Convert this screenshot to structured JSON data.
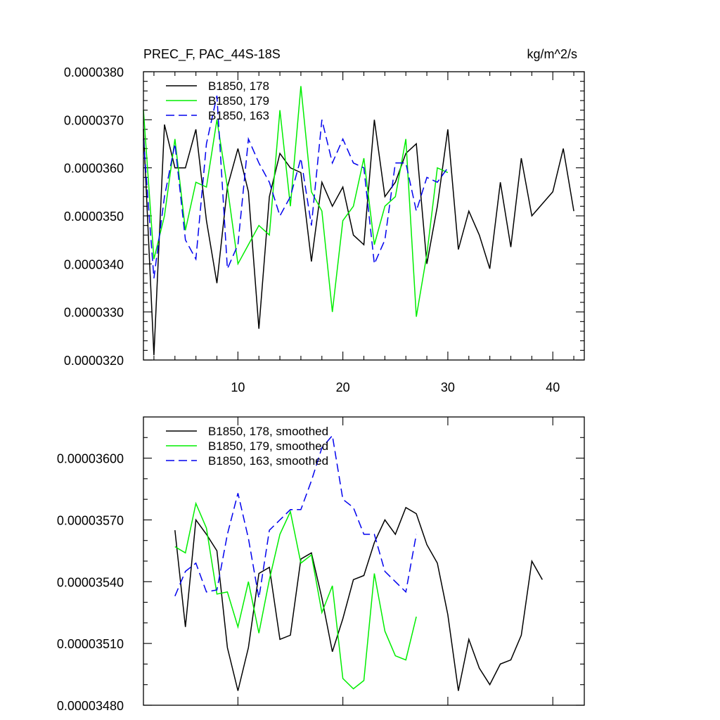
{
  "chart_data": [
    {
      "type": "line",
      "title": "PREC_F, PAC_44S-18S",
      "units_label": "kg/m^2/s",
      "xlim": [
        1,
        43
      ],
      "ylim": [
        3.2e-05,
        3.8e-05
      ],
      "x_ticks": [
        10,
        20,
        30,
        40
      ],
      "x_tick_labels": [
        "10",
        "20",
        "30",
        "40"
      ],
      "x_minor_ticks": [
        2,
        4,
        6,
        8,
        12,
        14,
        16,
        18,
        22,
        24,
        26,
        28,
        32,
        34,
        36,
        38,
        42
      ],
      "y_ticks": [
        3.2e-05,
        3.3e-05,
        3.4e-05,
        3.5e-05,
        3.6e-05,
        3.7e-05,
        3.8e-05
      ],
      "y_tick_labels": [
        "0.0000320",
        "0.0000330",
        "0.0000340",
        "0.0000350",
        "0.0000360",
        "0.0000370",
        "0.0000380"
      ],
      "y_minor_ticks": [
        3.22e-05,
        3.24e-05,
        3.26e-05,
        3.28e-05,
        3.32e-05,
        3.34e-05,
        3.36e-05,
        3.38e-05,
        3.42e-05,
        3.44e-05,
        3.46e-05,
        3.48e-05,
        3.52e-05,
        3.54e-05,
        3.56e-05,
        3.58e-05,
        3.62e-05,
        3.64e-05,
        3.66e-05,
        3.68e-05,
        3.72e-05,
        3.74e-05,
        3.76e-05,
        3.78e-05
      ],
      "legend_position": "top-left",
      "grid": false,
      "series": [
        {
          "name": "B1850, 178",
          "color": "#000000",
          "dash": "solid",
          "x": [
            1,
            2,
            3,
            4,
            5,
            6,
            7,
            8,
            9,
            10,
            11,
            12,
            13,
            14,
            15,
            16,
            17,
            18,
            19,
            20,
            21,
            22,
            23,
            24,
            25,
            26,
            27,
            28,
            29,
            30,
            31,
            32,
            33,
            34,
            35,
            36,
            37,
            38,
            39,
            40,
            41,
            42
          ],
          "y": [
            3.68e-05,
            3.21e-05,
            3.69e-05,
            3.6e-05,
            3.6e-05,
            3.68e-05,
            3.49e-05,
            3.36e-05,
            3.56e-05,
            3.64e-05,
            3.55e-05,
            3.265e-05,
            3.54e-05,
            3.63e-05,
            3.6e-05,
            3.59e-05,
            3.405e-05,
            3.57e-05,
            3.52e-05,
            3.56e-05,
            3.46e-05,
            3.44e-05,
            3.7e-05,
            3.54e-05,
            3.57e-05,
            3.63e-05,
            3.65e-05,
            3.4e-05,
            3.52e-05,
            3.68e-05,
            3.43e-05,
            3.51e-05,
            3.46e-05,
            3.39e-05,
            3.57e-05,
            3.435e-05,
            3.62e-05,
            3.5e-05,
            3.525e-05,
            3.55e-05,
            3.64e-05,
            3.51e-05
          ]
        },
        {
          "name": "B1850, 179",
          "color": "#00ee00",
          "dash": "solid",
          "x": [
            1,
            2,
            3,
            4,
            5,
            6,
            7,
            8,
            9,
            10,
            11,
            12,
            13,
            14,
            15,
            16,
            17,
            18,
            19,
            20,
            21,
            22,
            23,
            24,
            25,
            26,
            27,
            28,
            29,
            30
          ],
          "y": [
            3.72e-05,
            3.41e-05,
            3.5e-05,
            3.66e-05,
            3.47e-05,
            3.57e-05,
            3.56e-05,
            3.7e-05,
            3.56e-05,
            3.4e-05,
            3.44e-05,
            3.48e-05,
            3.46e-05,
            3.72e-05,
            3.52e-05,
            3.77e-05,
            3.55e-05,
            3.51e-05,
            3.3e-05,
            3.49e-05,
            3.52e-05,
            3.62e-05,
            3.44e-05,
            3.52e-05,
            3.54e-05,
            3.66e-05,
            3.29e-05,
            3.42e-05,
            3.6e-05,
            3.59e-05
          ]
        },
        {
          "name": "B1850, 163",
          "color": "#0000ee",
          "dash": "dashed",
          "x": [
            1,
            2,
            3,
            4,
            5,
            6,
            7,
            8,
            9,
            10,
            11,
            12,
            13,
            14,
            15,
            16,
            17,
            18,
            19,
            20,
            21,
            22,
            23,
            24,
            25,
            26,
            27,
            28,
            29,
            30
          ],
          "y": [
            3.66e-05,
            3.37e-05,
            3.54e-05,
            3.65e-05,
            3.45e-05,
            3.41e-05,
            3.65e-05,
            3.75e-05,
            3.39e-05,
            3.44e-05,
            3.66e-05,
            3.61e-05,
            3.57e-05,
            3.5e-05,
            3.54e-05,
            3.62e-05,
            3.48e-05,
            3.7e-05,
            3.61e-05,
            3.66e-05,
            3.61e-05,
            3.6e-05,
            3.4e-05,
            3.45e-05,
            3.61e-05,
            3.61e-05,
            3.51e-05,
            3.58e-05,
            3.57e-05,
            3.6e-05
          ]
        }
      ]
    },
    {
      "type": "line",
      "title": "",
      "xlim": [
        1,
        43
      ],
      "ylim": [
        3.48e-05,
        3.62e-05
      ],
      "x_ticks": [
        10,
        20,
        30,
        40
      ],
      "x_tick_labels": [],
      "y_ticks": [
        3.48e-05,
        3.51e-05,
        3.54e-05,
        3.57e-05,
        3.6e-05
      ],
      "y_tick_labels": [
        "0.00003480",
        "0.00003510",
        "0.00003540",
        "0.00003570",
        "0.00003600"
      ],
      "y_minor_ticks": [
        3.49e-05,
        3.5e-05,
        3.52e-05,
        3.53e-05,
        3.55e-05,
        3.56e-05,
        3.58e-05,
        3.59e-05,
        3.61e-05
      ],
      "legend_position": "top-left",
      "grid": false,
      "series": [
        {
          "name": "B1850, 178, smoothed",
          "color": "#000000",
          "dash": "solid",
          "x": [
            4,
            5,
            6,
            7,
            8,
            9,
            10,
            11,
            12,
            13,
            14,
            15,
            16,
            17,
            18,
            19,
            20,
            21,
            22,
            23,
            24,
            25,
            26,
            27,
            28,
            29,
            30,
            31,
            32,
            33,
            34,
            35,
            36,
            37,
            38,
            39
          ],
          "y": [
            3.565e-05,
            3.518e-05,
            3.57e-05,
            3.563e-05,
            3.555e-05,
            3.508e-05,
            3.487e-05,
            3.508e-05,
            3.544e-05,
            3.547e-05,
            3.512e-05,
            3.514e-05,
            3.551e-05,
            3.554e-05,
            3.532e-05,
            3.506e-05,
            3.522e-05,
            3.541e-05,
            3.543e-05,
            3.559e-05,
            3.57e-05,
            3.563e-05,
            3.576e-05,
            3.573e-05,
            3.558e-05,
            3.549e-05,
            3.524e-05,
            3.487e-05,
            3.512e-05,
            3.498e-05,
            3.49e-05,
            3.5e-05,
            3.502e-05,
            3.514e-05,
            3.55e-05,
            3.541e-05
          ]
        },
        {
          "name": "B1850, 179, smoothed",
          "color": "#00ee00",
          "dash": "solid",
          "x": [
            4,
            5,
            6,
            7,
            8,
            9,
            10,
            11,
            12,
            13,
            14,
            15,
            16,
            17,
            18,
            19,
            20,
            21,
            22,
            23,
            24,
            25,
            26,
            27
          ],
          "y": [
            3.557e-05,
            3.554e-05,
            3.578e-05,
            3.566e-05,
            3.534e-05,
            3.535e-05,
            3.518e-05,
            3.54e-05,
            3.515e-05,
            3.541e-05,
            3.563e-05,
            3.574e-05,
            3.549e-05,
            3.553e-05,
            3.525e-05,
            3.538e-05,
            3.493e-05,
            3.488e-05,
            3.492e-05,
            3.544e-05,
            3.516e-05,
            3.504e-05,
            3.502e-05,
            3.523e-05
          ]
        },
        {
          "name": "B1850, 163, smoothed",
          "color": "#0000ee",
          "dash": "dashed",
          "x": [
            4,
            5,
            6,
            7,
            8,
            9,
            10,
            11,
            12,
            13,
            14,
            15,
            16,
            17,
            18,
            19,
            20,
            21,
            22,
            23,
            24,
            25,
            26,
            27
          ],
          "y": [
            3.533e-05,
            3.545e-05,
            3.549e-05,
            3.535e-05,
            3.536e-05,
            3.563e-05,
            3.583e-05,
            3.561e-05,
            3.532e-05,
            3.565e-05,
            3.57e-05,
            3.575e-05,
            3.575e-05,
            3.589e-05,
            3.605e-05,
            3.611e-05,
            3.58e-05,
            3.576e-05,
            3.563e-05,
            3.563e-05,
            3.545e-05,
            3.54e-05,
            3.535e-05,
            3.563e-05
          ]
        }
      ]
    }
  ]
}
